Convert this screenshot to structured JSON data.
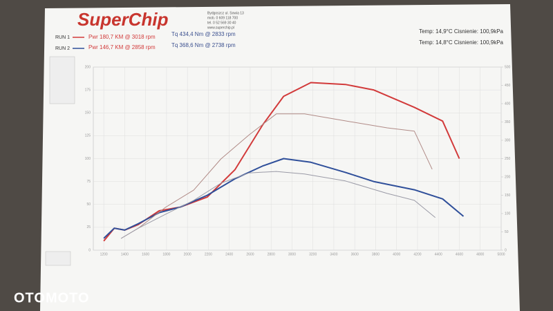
{
  "header": {
    "logo": "SuperChip",
    "address": [
      "Bydgoszcz ul. Sowia 13",
      "mob. 0 609 118 700",
      "tel. 0 52 569 30 40",
      "www.superchip.pl"
    ]
  },
  "runs": [
    {
      "name": "RUN 1",
      "pwr": "Pwr 180,7 KM @ 3018 rpm",
      "tq": "Tq 434,4 Nm @ 2833 rpm",
      "conditions": "Temp: 14,9°C Cisnienie: 100,9kPa"
    },
    {
      "name": "RUN 2",
      "pwr": "Pwr 146,7 KM @ 2858 rpm",
      "tq": "Tq 368,6 Nm @ 2738 rpm",
      "conditions": "Temp: 14,8°C Cisnienie: 100,9kPa"
    }
  ],
  "watermark": "OTOMOTO",
  "chart_data": {
    "type": "line",
    "grid": true,
    "xlim": [
      1100,
      5000
    ],
    "xticks": [
      1200,
      1400,
      1600,
      1800,
      2000,
      2200,
      2400,
      2600,
      2800,
      3000,
      3200,
      3400,
      3600,
      3800,
      4000,
      4200,
      4400,
      4600,
      4800,
      5000
    ],
    "ylim": [
      0,
      200
    ],
    "yticks": [
      0,
      25,
      50,
      75,
      100,
      125,
      150,
      175,
      200
    ],
    "y2lim": [
      0,
      500
    ],
    "y2ticks": [
      0,
      50,
      100,
      150,
      200,
      250,
      300,
      350,
      400,
      450,
      500
    ],
    "series": [
      {
        "color": "#d23a3a",
        "width": 2,
        "x": [
          1200,
          1300,
          1400,
          1530,
          1730,
          1930,
          2190,
          2455,
          2720,
          2920,
          3180,
          3510,
          3780,
          4170,
          4440,
          4600
        ],
        "values": [
          10,
          24,
          22,
          28,
          43,
          47,
          58,
          88,
          137,
          168,
          183,
          181,
          175,
          156,
          141,
          100
        ]
      },
      {
        "color": "#2f4f9a",
        "width": 2,
        "x": [
          1200,
          1300,
          1400,
          1530,
          1730,
          1930,
          2190,
          2455,
          2720,
          2920,
          3180,
          3510,
          3780,
          4170,
          4440,
          4640
        ],
        "values": [
          13,
          24,
          22,
          29,
          41,
          47,
          60,
          78,
          92,
          100,
          96,
          85,
          75,
          66,
          56,
          37
        ]
      },
      {
        "color": "#b08a86",
        "width": 1,
        "axis": "y2",
        "x": [
          1365,
          1530,
          1790,
          2060,
          2320,
          2590,
          2850,
          3120,
          3510,
          3910,
          4170,
          4340
        ],
        "values": [
          32,
          60,
          117,
          164,
          249,
          315,
          372,
          372,
          353,
          334,
          325,
          221
        ]
      },
      {
        "color": "#9a9aa6",
        "width": 1,
        "axis": "y2",
        "x": [
          1365,
          1530,
          1790,
          2060,
          2320,
          2590,
          2850,
          3120,
          3510,
          3910,
          4170,
          4370
        ],
        "values": [
          32,
          60,
          98,
          136,
          183,
          211,
          215,
          208,
          189,
          155,
          136,
          89
        ]
      }
    ]
  }
}
